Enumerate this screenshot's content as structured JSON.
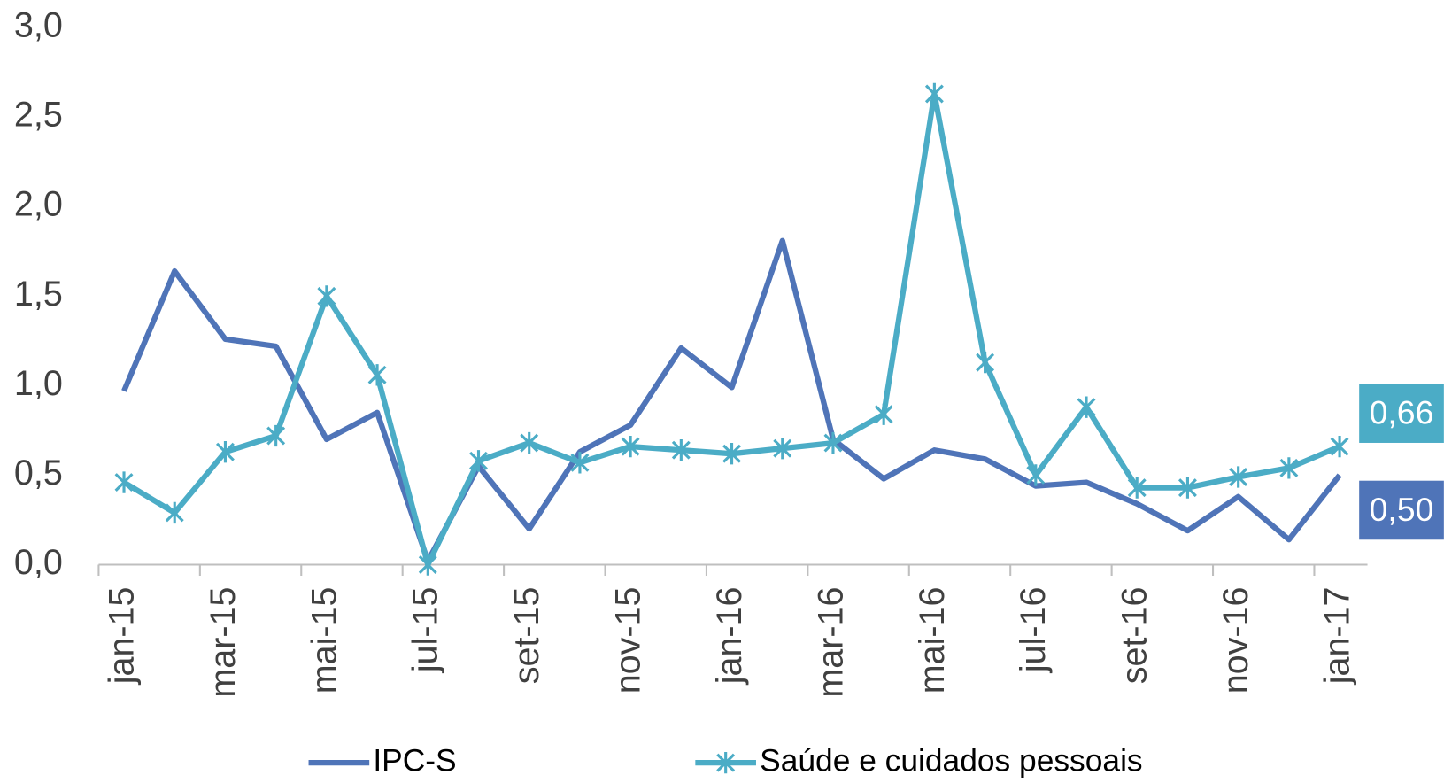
{
  "chart_data": {
    "type": "line",
    "categories": [
      "jan-15",
      null,
      "mar-15",
      null,
      "mai-15",
      null,
      "jul-15",
      null,
      "set-15",
      null,
      "nov-15",
      null,
      "jan-16",
      null,
      "mar-16",
      null,
      "mai-16",
      null,
      "jul-16",
      null,
      "set-16",
      null,
      "nov-16",
      null,
      "jan-17"
    ],
    "series": [
      {
        "name": "IPC-S",
        "color": "#4f74b8",
        "marker": "none",
        "values": [
          0.97,
          1.64,
          1.26,
          1.22,
          0.7,
          0.85,
          0.02,
          0.55,
          0.2,
          0.63,
          0.78,
          1.21,
          0.99,
          1.81,
          0.7,
          0.48,
          0.64,
          0.59,
          0.44,
          0.46,
          0.34,
          0.19,
          0.38,
          0.14,
          0.5
        ],
        "value_labels": [
          null,
          null,
          null,
          null,
          null,
          null,
          null,
          null,
          null,
          null,
          null,
          null,
          null,
          null,
          null,
          null,
          null,
          null,
          null,
          null,
          null,
          null,
          null,
          null,
          "0,50"
        ]
      },
      {
        "name": "Saúde e cuidados pessoais",
        "color": "#4bacc6",
        "marker": "asterisk",
        "values": [
          0.46,
          0.29,
          0.63,
          0.72,
          1.5,
          1.06,
          0.0,
          0.58,
          0.68,
          0.57,
          0.66,
          0.64,
          0.62,
          0.65,
          0.68,
          0.84,
          2.63,
          1.13,
          0.5,
          0.88,
          0.43,
          0.43,
          0.49,
          0.54,
          0.66
        ],
        "value_labels": [
          null,
          null,
          null,
          null,
          null,
          null,
          null,
          null,
          null,
          null,
          null,
          null,
          null,
          null,
          null,
          null,
          null,
          null,
          null,
          null,
          null,
          null,
          null,
          null,
          "0,66"
        ]
      }
    ],
    "ylim": [
      0,
      3
    ],
    "yticks": [
      {
        "value": 0,
        "label": "0,0"
      },
      {
        "value": 0.5,
        "label": "0,5"
      },
      {
        "value": 1,
        "label": "1,0"
      },
      {
        "value": 1.5,
        "label": "1,5"
      },
      {
        "value": 2,
        "label": "2,0"
      },
      {
        "value": 2.5,
        "label": "2,5"
      },
      {
        "value": 3,
        "label": "3,0"
      }
    ],
    "grid": false,
    "legend": "bottom"
  }
}
